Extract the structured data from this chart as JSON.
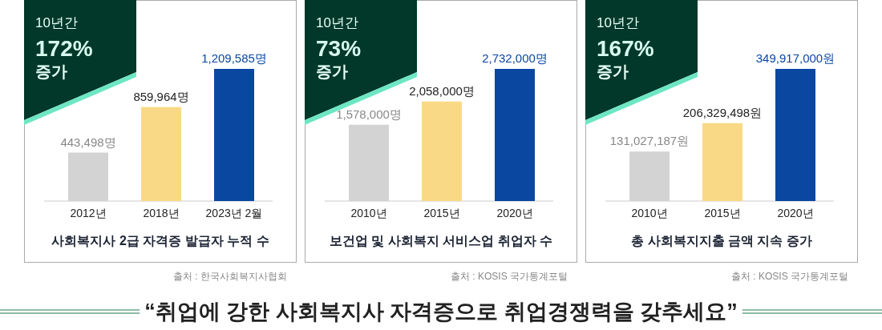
{
  "chart_data": [
    {
      "type": "bar",
      "title": "사회복지사 2급 자격증 발급자 누적 수",
      "categories": [
        "2012년",
        "2018년",
        "2023년 2월"
      ],
      "values": [
        443498,
        859964,
        1209585
      ],
      "value_labels": [
        "443,498명",
        "859,964명",
        "1,209,585명"
      ],
      "colors": [
        "#d3d3d3",
        "#fad986",
        "#0a47a0"
      ],
      "annotations": [
        "10년간",
        "172%",
        "증가",
        "출처 : 한국사회복지사협회"
      ]
    },
    {
      "type": "bar",
      "title": "보건업 및 사회복지 서비스업 취업자 수",
      "categories": [
        "2010년",
        "2015년",
        "2020년"
      ],
      "values": [
        1578000,
        2058000,
        2732000
      ],
      "value_labels": [
        "1,578,000명",
        "2,058,000명",
        "2,732,000명"
      ],
      "colors": [
        "#d3d3d3",
        "#fad986",
        "#0a47a0"
      ],
      "annotations": [
        "10년간",
        "73%",
        "증가",
        "출처 : KOSIS 국가통계포털"
      ]
    },
    {
      "type": "bar",
      "title": "총 사회복지지출 금액 지속 증가",
      "categories": [
        "2010년",
        "2015년",
        "2020년"
      ],
      "values": [
        131027187,
        206329498,
        349917000
      ],
      "value_labels": [
        "131,027,187원",
        "206,329,498원",
        "349,917,000원"
      ],
      "colors": [
        "#d3d3d3",
        "#fad986",
        "#0a47a0"
      ],
      "annotations": [
        "10년간",
        "167%",
        "증가",
        "출처 : KOSIS 국가통계포털"
      ]
    },
    {
      "type": "other",
      "title": "“취업에 강한 사회복지사 자격증으로 취업경쟁력을 갖추세요”"
    }
  ]
}
